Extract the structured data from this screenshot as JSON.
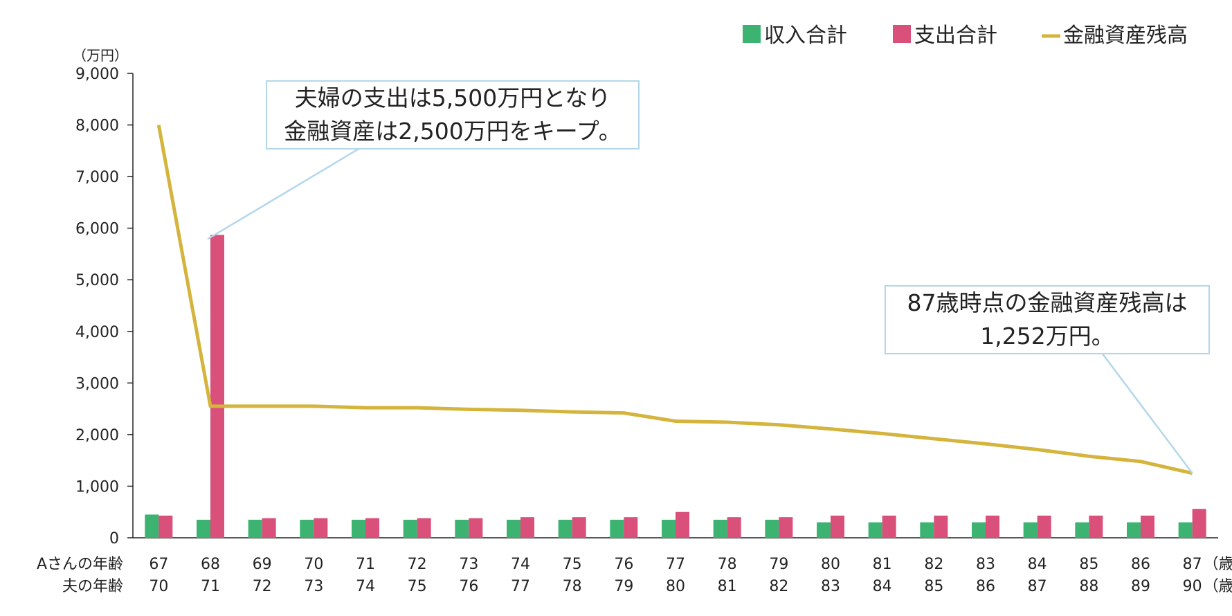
{
  "chart_data": {
    "type": "bar",
    "unit_label": "（万円）",
    "ylim": [
      0,
      9000
    ],
    "yticks": [
      "0",
      "1,000",
      "2,000",
      "3,000",
      "4,000",
      "5,000",
      "6,000",
      "7,000",
      "8,000",
      "9,000"
    ],
    "row_labels": [
      "Aさんの年齢",
      "夫の年齢"
    ],
    "categories": [
      "67",
      "68",
      "69",
      "70",
      "71",
      "72",
      "73",
      "74",
      "75",
      "76",
      "77",
      "78",
      "79",
      "80",
      "81",
      "82",
      "83",
      "84",
      "85",
      "86",
      "87"
    ],
    "husband_ages": [
      "70",
      "71",
      "72",
      "73",
      "74",
      "75",
      "76",
      "77",
      "78",
      "79",
      "80",
      "81",
      "82",
      "83",
      "84",
      "85",
      "86",
      "87",
      "88",
      "89",
      "90"
    ],
    "age_suffix": "（歳）",
    "series": [
      {
        "name": "収入合計",
        "type": "bar",
        "color": "#3cb371",
        "values": [
          450,
          350,
          350,
          350,
          350,
          350,
          350,
          350,
          350,
          350,
          350,
          350,
          350,
          300,
          300,
          300,
          300,
          300,
          300,
          300,
          300
        ]
      },
      {
        "name": "支出合計",
        "type": "bar",
        "color": "#d9507a",
        "values": [
          430,
          5870,
          380,
          380,
          380,
          380,
          380,
          400,
          400,
          400,
          500,
          400,
          400,
          430,
          430,
          430,
          430,
          430,
          430,
          430,
          560
        ]
      },
      {
        "name": "金融資産残高",
        "type": "line",
        "color": "#d4b43c",
        "values": [
          8000,
          2550,
          2550,
          2550,
          2520,
          2520,
          2490,
          2470,
          2440,
          2420,
          2260,
          2240,
          2190,
          2110,
          2020,
          1920,
          1820,
          1710,
          1580,
          1480,
          1252
        ]
      }
    ],
    "legend_position": "top-right",
    "annotations": [
      {
        "line1": "夫婦の支出は5,500万円となり",
        "line2": "金融資産は2,500万円をキープ。",
        "target_index": 1
      },
      {
        "line1": "87歳時点の金融資産残高は",
        "line2": "1,252万円。",
        "target_index": 20
      }
    ]
  }
}
